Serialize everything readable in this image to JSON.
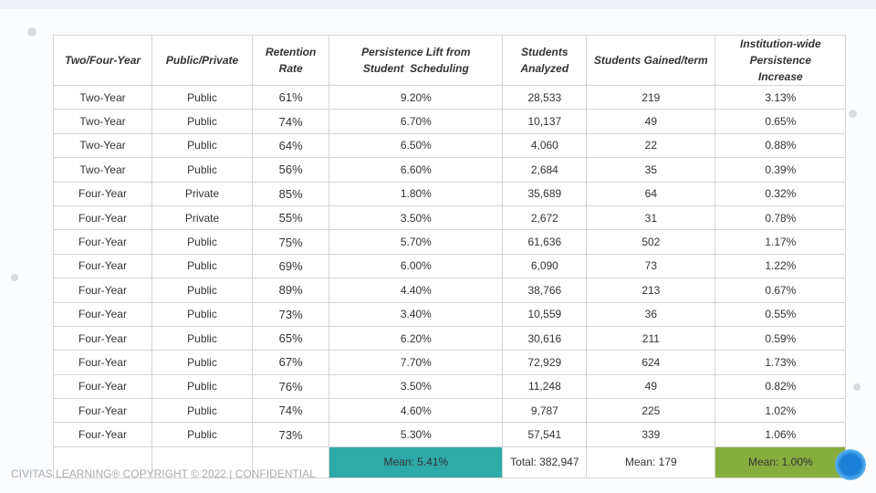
{
  "headers": [
    "Two/Four-Year",
    "Public/Private",
    "Retention Rate",
    "Persistence Lift from Student  Scheduling",
    "Students Analyzed",
    "Students Gained/term",
    "Institution-wide Persistence Increase"
  ],
  "rows": [
    [
      "Two-Year",
      "Public",
      "61%",
      "9.20%",
      "28,533",
      "219",
      "3.13%"
    ],
    [
      "Two-Year",
      "Public",
      "74%",
      "6.70%",
      "10,137",
      "49",
      "0.65%"
    ],
    [
      "Two-Year",
      "Public",
      "64%",
      "6.50%",
      "4,060",
      "22",
      "0.88%"
    ],
    [
      "Two-Year",
      "Public",
      "56%",
      "6.60%",
      "2,684",
      "35",
      "0.39%"
    ],
    [
      "Four-Year",
      "Private",
      "85%",
      "1.80%",
      "35,689",
      "64",
      "0.32%"
    ],
    [
      "Four-Year",
      "Private",
      "55%",
      "3.50%",
      "2,672",
      "31",
      "0.78%"
    ],
    [
      "Four-Year",
      "Public",
      "75%",
      "5.70%",
      "61,636",
      "502",
      "1.17%"
    ],
    [
      "Four-Year",
      "Public",
      "69%",
      "6.00%",
      "6,090",
      "73",
      "1.22%"
    ],
    [
      "Four-Year",
      "Public",
      "89%",
      "4.40%",
      "38,766",
      "213",
      "0.67%"
    ],
    [
      "Four-Year",
      "Public",
      "73%",
      "3.40%",
      "10,559",
      "36",
      "0.55%"
    ],
    [
      "Four-Year",
      "Public",
      "65%",
      "6.20%",
      "30,616",
      "211",
      "0.59%"
    ],
    [
      "Four-Year",
      "Public",
      "67%",
      "7.70%",
      "72,929",
      "624",
      "1.73%"
    ],
    [
      "Four-Year",
      "Public",
      "76%",
      "3.50%",
      "11,248",
      "49",
      "0.82%"
    ],
    [
      "Four-Year",
      "Public",
      "74%",
      "4.60%",
      "9,787",
      "225",
      "1.02%"
    ],
    [
      "Four-Year",
      "Public",
      "73%",
      "5.30%",
      "57,541",
      "339",
      "1.06%"
    ]
  ],
  "summary": {
    "lift_mean": "Mean: 5.41%",
    "students_total": "Total: 382,947",
    "gained_mean": "Mean: 179",
    "increase_mean": "Mean: 1.00%"
  },
  "colors": {
    "teal": "#2eaaa8",
    "green": "#86ae3f"
  },
  "footer": "CIVITAS LEARNING® COPYRIGHT © 2022  |  CONFIDENTIAL",
  "logo": "C"
}
